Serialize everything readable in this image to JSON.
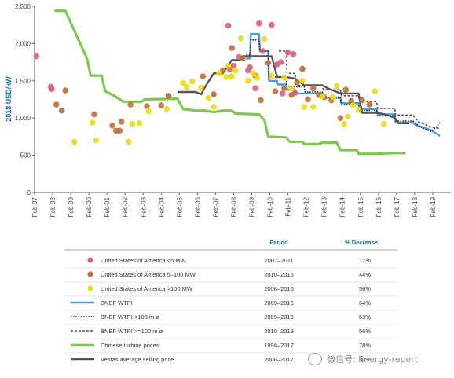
{
  "chart_data": {
    "type": "line",
    "ylabel": "2018 USD/kW",
    "xlabel": "",
    "ylim": [
      0,
      2500
    ],
    "yticks": [
      0,
      500,
      1000,
      1500,
      2000,
      2500
    ],
    "xticks": [
      "Feb-97",
      "Feb-98",
      "Feb-99",
      "Feb-00",
      "Feb-01",
      "Feb-02",
      "Feb-03",
      "Feb-04",
      "Feb-05",
      "Feb-06",
      "Feb-07",
      "Feb-08",
      "Feb-09",
      "Feb-10",
      "Feb-11",
      "Feb-12",
      "Feb-13",
      "Feb-14",
      "Feb-15",
      "Feb-16",
      "Feb-17",
      "Feb-18",
      "Feb-19"
    ],
    "xrange": [
      1997.1,
      2020.1
    ],
    "grid": false,
    "legend_header": {
      "period": "Period",
      "decrease": "% Decrease"
    },
    "series": [
      {
        "name": "United States of America <5 MW",
        "kind": "scatter",
        "color": "#d9607e",
        "period": "2007–2011",
        "decrease": "17%",
        "points": [
          [
            1997.2,
            1830
          ],
          [
            1998.0,
            1420
          ],
          [
            1998.05,
            1390
          ],
          [
            2007.8,
            2240
          ],
          [
            2009.5,
            2270
          ],
          [
            2008.4,
            1820
          ],
          [
            2008.9,
            1640
          ],
          [
            2009.3,
            1400
          ],
          [
            2009.7,
            1900
          ],
          [
            2010.2,
            2250
          ],
          [
            2010.5,
            1720
          ],
          [
            2010.8,
            1330
          ],
          [
            2011.1,
            1880
          ],
          [
            2011.4,
            1860
          ],
          [
            2007.9,
            1650
          ],
          [
            2008.1,
            1700
          ],
          [
            2009.0,
            1680
          ],
          [
            2010.7,
            1750
          ],
          [
            2011.5,
            1340
          ]
        ]
      },
      {
        "name": "United States of America 5–100 MW",
        "kind": "scatter",
        "color": "#c0703a",
        "period": "2010–2015",
        "decrease": "44%",
        "points": [
          [
            1998.3,
            1180
          ],
          [
            1998.6,
            1100
          ],
          [
            1998.8,
            1370
          ],
          [
            2000.4,
            1050
          ],
          [
            2001.4,
            900
          ],
          [
            2001.6,
            830
          ],
          [
            2001.8,
            830
          ],
          [
            2001.9,
            950
          ],
          [
            2002.4,
            1180
          ],
          [
            2003.3,
            1160
          ],
          [
            2004.1,
            1170
          ],
          [
            2004.5,
            1300
          ],
          [
            2006.4,
            1560
          ],
          [
            2007.0,
            1320
          ],
          [
            2007.5,
            1640
          ],
          [
            2008.0,
            1940
          ],
          [
            2008.6,
            1800
          ],
          [
            2009.3,
            1570
          ],
          [
            2009.6,
            1240
          ],
          [
            2010.0,
            1740
          ],
          [
            2010.4,
            1360
          ],
          [
            2010.9,
            1400
          ],
          [
            2011.3,
            1310
          ],
          [
            2011.6,
            1480
          ],
          [
            2011.9,
            1660
          ],
          [
            2012.2,
            1250
          ],
          [
            2012.5,
            1400
          ],
          [
            2012.8,
            1310
          ],
          [
            2013.1,
            1280
          ],
          [
            2013.5,
            1240
          ],
          [
            2014.0,
            1000
          ],
          [
            2014.3,
            1380
          ],
          [
            2014.6,
            1230
          ],
          [
            2015.2,
            1240
          ],
          [
            2015.6,
            1180
          ]
        ]
      },
      {
        "name": "United States of America >100 MW",
        "kind": "scatter",
        "color": "#e8dc1e",
        "period": "2008–2016",
        "decrease": "56%",
        "points": [
          [
            1999.3,
            680
          ],
          [
            2000.3,
            940
          ],
          [
            2000.5,
            700
          ],
          [
            2002.3,
            680
          ],
          [
            2002.5,
            920
          ],
          [
            2002.9,
            930
          ],
          [
            2003.4,
            1090
          ],
          [
            2004.4,
            1120
          ],
          [
            2005.3,
            1470
          ],
          [
            2005.5,
            1420
          ],
          [
            2005.8,
            1490
          ],
          [
            2006.3,
            1410
          ],
          [
            2006.7,
            1270
          ],
          [
            2007.0,
            1150
          ],
          [
            2007.3,
            1600
          ],
          [
            2007.7,
            1550
          ],
          [
            2007.8,
            1700
          ],
          [
            2008.0,
            1560
          ],
          [
            2008.2,
            1640
          ],
          [
            2008.5,
            2070
          ],
          [
            2008.9,
            1500
          ],
          [
            2009.2,
            1600
          ],
          [
            2009.4,
            1540
          ],
          [
            2009.8,
            2060
          ],
          [
            2010.2,
            1570
          ],
          [
            2010.9,
            1540
          ],
          [
            2011.3,
            1400
          ],
          [
            2011.9,
            1500
          ],
          [
            2012.0,
            1150
          ],
          [
            2012.5,
            1150
          ],
          [
            2013.0,
            1290
          ],
          [
            2013.6,
            1280
          ],
          [
            2013.8,
            1430
          ],
          [
            2014.2,
            920
          ],
          [
            2014.4,
            1020
          ],
          [
            2014.7,
            1170
          ],
          [
            2015.0,
            1110
          ],
          [
            2015.9,
            1360
          ],
          [
            2016.4,
            920
          ]
        ]
      },
      {
        "name": "BNEF WTPI",
        "kind": "line",
        "color": "#4a9fd8",
        "style": "solid",
        "period": "2009–2019",
        "decrease": "64%",
        "points": [
          [
            2008.8,
            1800
          ],
          [
            2009.0,
            1800
          ],
          [
            2009.05,
            2130
          ],
          [
            2009.5,
            2130
          ],
          [
            2009.55,
            1900
          ],
          [
            2010.0,
            1900
          ],
          [
            2010.05,
            1500
          ],
          [
            2010.5,
            1500
          ],
          [
            2010.55,
            1450
          ],
          [
            2011.0,
            1450
          ],
          [
            2011.05,
            1380
          ],
          [
            2011.5,
            1380
          ],
          [
            2011.55,
            1330
          ],
          [
            2013.0,
            1330
          ],
          [
            2013.05,
            1270
          ],
          [
            2014.0,
            1270
          ],
          [
            2014.05,
            1200
          ],
          [
            2015.0,
            1200
          ],
          [
            2015.05,
            1120
          ],
          [
            2016.0,
            1120
          ],
          [
            2016.05,
            1050
          ],
          [
            2017.0,
            1050
          ],
          [
            2017.05,
            940
          ],
          [
            2018.0,
            940
          ],
          [
            2018.2,
            900
          ],
          [
            2019.0,
            840
          ],
          [
            2019.3,
            790
          ],
          [
            2019.5,
            760
          ]
        ]
      },
      {
        "name": "BNEF WTPI <100 m ø",
        "kind": "line",
        "color": "#222222",
        "style": "dotted",
        "period": "2009–2019",
        "decrease": "53%",
        "points": [
          [
            2008.8,
            1850
          ],
          [
            2009.0,
            1850
          ],
          [
            2009.05,
            2050
          ],
          [
            2009.5,
            2050
          ],
          [
            2009.55,
            1900
          ],
          [
            2010.0,
            1900
          ],
          [
            2010.05,
            1550
          ],
          [
            2011.0,
            1550
          ],
          [
            2011.05,
            1420
          ],
          [
            2012.0,
            1420
          ],
          [
            2012.05,
            1350
          ],
          [
            2013.0,
            1350
          ],
          [
            2013.05,
            1280
          ],
          [
            2014.0,
            1280
          ],
          [
            2014.05,
            1180
          ],
          [
            2015.0,
            1180
          ],
          [
            2015.05,
            1100
          ],
          [
            2016.0,
            1100
          ],
          [
            2016.05,
            1030
          ],
          [
            2017.0,
            1030
          ],
          [
            2017.05,
            960
          ],
          [
            2018.0,
            960
          ],
          [
            2018.2,
            920
          ],
          [
            2018.6,
            860
          ],
          [
            2019.0,
            820
          ],
          [
            2019.3,
            880
          ],
          [
            2019.5,
            940
          ]
        ]
      },
      {
        "name": "BNEF WTPI >=100 m ø",
        "kind": "line",
        "color": "#555555",
        "style": "dashed",
        "period": "2010–2019",
        "decrease": "56%",
        "points": [
          [
            2010.6,
            1900
          ],
          [
            2011.0,
            1900
          ],
          [
            2011.05,
            1600
          ],
          [
            2011.5,
            1600
          ],
          [
            2011.55,
            1440
          ],
          [
            2013.0,
            1440
          ],
          [
            2013.05,
            1380
          ],
          [
            2014.0,
            1380
          ],
          [
            2014.05,
            1300
          ],
          [
            2015.0,
            1300
          ],
          [
            2015.05,
            1220
          ],
          [
            2016.0,
            1220
          ],
          [
            2016.05,
            1130
          ],
          [
            2017.0,
            1130
          ],
          [
            2017.05,
            1040
          ],
          [
            2018.0,
            1040
          ],
          [
            2018.3,
            950
          ],
          [
            2019.0,
            880
          ],
          [
            2019.5,
            860
          ]
        ]
      },
      {
        "name": "Chinese turbine prices",
        "kind": "line",
        "color": "#7ec850",
        "style": "solid",
        "period": "1998–2017",
        "decrease": "78%",
        "points": [
          [
            1998.2,
            2440
          ],
          [
            1998.8,
            2440
          ],
          [
            2000.0,
            1800
          ],
          [
            2000.2,
            1570
          ],
          [
            2000.8,
            1570
          ],
          [
            2001.0,
            1360
          ],
          [
            2001.5,
            1300
          ],
          [
            2002.0,
            1220
          ],
          [
            2003.0,
            1220
          ],
          [
            2003.2,
            1250
          ],
          [
            2005.0,
            1260
          ],
          [
            2005.3,
            1120
          ],
          [
            2006.0,
            1100
          ],
          [
            2006.5,
            1100
          ],
          [
            2007.0,
            1080
          ],
          [
            2007.5,
            1100
          ],
          [
            2008.0,
            1100
          ],
          [
            2008.2,
            1060
          ],
          [
            2009.5,
            1050
          ],
          [
            2009.8,
            970
          ],
          [
            2010.0,
            750
          ],
          [
            2011.0,
            740
          ],
          [
            2011.2,
            680
          ],
          [
            2011.9,
            680
          ],
          [
            2012.0,
            650
          ],
          [
            2012.8,
            650
          ],
          [
            2013.0,
            670
          ],
          [
            2013.8,
            670
          ],
          [
            2014.0,
            570
          ],
          [
            2014.9,
            570
          ],
          [
            2015.0,
            520
          ],
          [
            2016.0,
            520
          ],
          [
            2017.0,
            530
          ],
          [
            2017.6,
            530
          ]
        ]
      },
      {
        "name": "Vestas average selling price",
        "kind": "line",
        "color": "#555555",
        "style": "solid",
        "period": "2008–2017",
        "decrease": "30%",
        "points": [
          [
            2005.0,
            1350
          ],
          [
            2006.0,
            1350
          ],
          [
            2006.3,
            1320
          ],
          [
            2006.6,
            1450
          ],
          [
            2007.0,
            1600
          ],
          [
            2007.5,
            1600
          ],
          [
            2008.0,
            1780
          ],
          [
            2008.5,
            1780
          ],
          [
            2008.6,
            1830
          ],
          [
            2010.2,
            1830
          ],
          [
            2010.5,
            1550
          ],
          [
            2011.0,
            1550
          ],
          [
            2011.5,
            1530
          ],
          [
            2012.0,
            1440
          ],
          [
            2013.0,
            1440
          ],
          [
            2013.3,
            1400
          ],
          [
            2014.0,
            1330
          ],
          [
            2015.0,
            1330
          ],
          [
            2015.2,
            1070
          ],
          [
            2016.0,
            1070
          ],
          [
            2016.5,
            1050
          ],
          [
            2017.0,
            1000
          ],
          [
            2017.2,
            930
          ],
          [
            2017.8,
            930
          ]
        ]
      }
    ]
  },
  "watermark": {
    "text": "微信号: Energy-report",
    "icon": "wechat-icon"
  }
}
